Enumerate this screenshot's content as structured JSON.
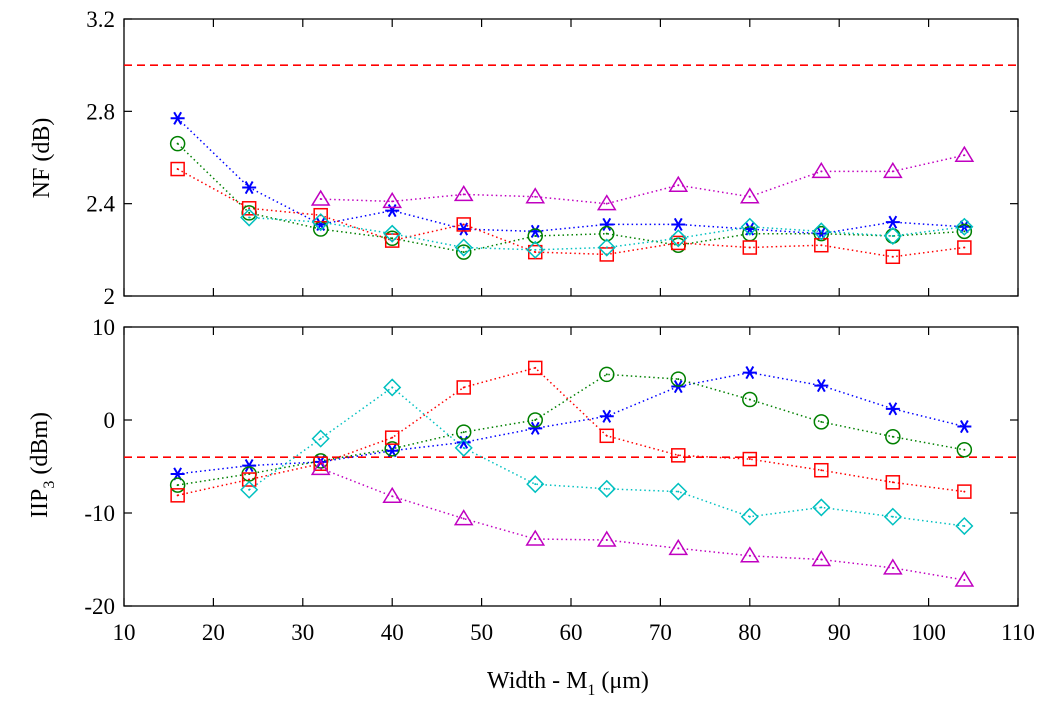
{
  "chart_data": [
    {
      "type": "line",
      "panel": "top",
      "ylabel": "NF (dB)",
      "xlim": [
        10,
        110
      ],
      "ylim": [
        2,
        3.2
      ],
      "yticks": [
        2,
        2.4,
        2.8,
        3.2
      ],
      "ytick_labels": [
        "2",
        "2.4",
        "2.8",
        "3.2"
      ],
      "reference_line": {
        "y": 3.0,
        "style": "dashed",
        "color": "#ff0000"
      },
      "x": [
        16,
        24,
        32,
        40,
        48,
        56,
        64,
        72,
        80,
        88,
        96,
        104
      ],
      "series": [
        {
          "name": "asterisk",
          "marker": "asterisk",
          "color": "#0000ff",
          "values": [
            2.77,
            2.47,
            2.31,
            2.37,
            2.29,
            2.28,
            2.31,
            2.31,
            2.29,
            2.27,
            2.32,
            2.3
          ]
        },
        {
          "name": "circle",
          "marker": "circle",
          "color": "#008000",
          "values": [
            2.66,
            2.36,
            2.29,
            2.25,
            2.19,
            2.26,
            2.27,
            2.22,
            2.27,
            2.27,
            2.26,
            2.28
          ]
        },
        {
          "name": "square",
          "marker": "square",
          "color": "#ff0000",
          "values": [
            2.55,
            2.38,
            2.35,
            2.24,
            2.31,
            2.19,
            2.18,
            2.23,
            2.21,
            2.22,
            2.17,
            2.21
          ]
        },
        {
          "name": "diamond",
          "marker": "diamond",
          "color": "#00c0c0",
          "values": [
            null,
            2.34,
            2.32,
            2.27,
            2.21,
            2.2,
            2.21,
            2.25,
            2.3,
            2.28,
            2.26,
            2.3
          ]
        },
        {
          "name": "triangle",
          "marker": "triangle",
          "color": "#c000c0",
          "values": [
            null,
            null,
            2.42,
            2.41,
            2.44,
            2.43,
            2.4,
            2.48,
            2.43,
            2.54,
            2.54,
            2.61
          ]
        }
      ]
    },
    {
      "type": "line",
      "panel": "bottom",
      "ylabel_main": "IIP",
      "ylabel_sub": "3",
      "ylabel_unit": " (dBm)",
      "xlabel_main": "Width - M",
      "xlabel_sub": "1",
      "xlabel_unit": " (μm)",
      "xlim": [
        10,
        110
      ],
      "ylim": [
        -20,
        10
      ],
      "yticks": [
        -20,
        -10,
        0,
        10
      ],
      "ytick_labels": [
        "-20",
        "-10",
        "0",
        "10"
      ],
      "xticks": [
        10,
        20,
        30,
        40,
        50,
        60,
        70,
        80,
        90,
        100,
        110
      ],
      "xtick_labels": [
        "10",
        "20",
        "30",
        "40",
        "50",
        "60",
        "70",
        "80",
        "90",
        "100",
        "110"
      ],
      "reference_line": {
        "y": -4.0,
        "style": "dashed",
        "color": "#ff0000"
      },
      "x": [
        16,
        24,
        32,
        40,
        48,
        56,
        64,
        72,
        80,
        88,
        96,
        104
      ],
      "series": [
        {
          "name": "asterisk",
          "marker": "asterisk",
          "color": "#0000ff",
          "values": [
            -5.8,
            -4.9,
            -4.5,
            -3.3,
            -2.4,
            -0.9,
            0.4,
            3.6,
            5.1,
            3.7,
            1.2,
            -0.7
          ]
        },
        {
          "name": "circle",
          "marker": "circle",
          "color": "#008000",
          "values": [
            -7.0,
            -5.8,
            -4.4,
            -3.1,
            -1.3,
            0.0,
            4.9,
            4.4,
            2.2,
            -0.2,
            -1.8,
            -3.2
          ]
        },
        {
          "name": "square",
          "marker": "square",
          "color": "#ff0000",
          "values": [
            -8.1,
            -6.4,
            -4.7,
            -1.9,
            3.5,
            5.6,
            -1.7,
            -3.8,
            -4.2,
            -5.4,
            -6.7,
            -7.7
          ]
        },
        {
          "name": "diamond",
          "marker": "diamond",
          "color": "#00c0c0",
          "values": [
            null,
            -7.5,
            -2.0,
            3.5,
            -3.0,
            -6.9,
            -7.4,
            -7.7,
            -10.4,
            -9.4,
            -10.4,
            -11.4
          ]
        },
        {
          "name": "triangle",
          "marker": "triangle",
          "color": "#c000c0",
          "values": [
            null,
            null,
            -5.2,
            -8.2,
            -10.6,
            -12.8,
            -12.9,
            -13.8,
            -14.6,
            -15.0,
            -15.9,
            -17.2
          ]
        }
      ]
    }
  ]
}
